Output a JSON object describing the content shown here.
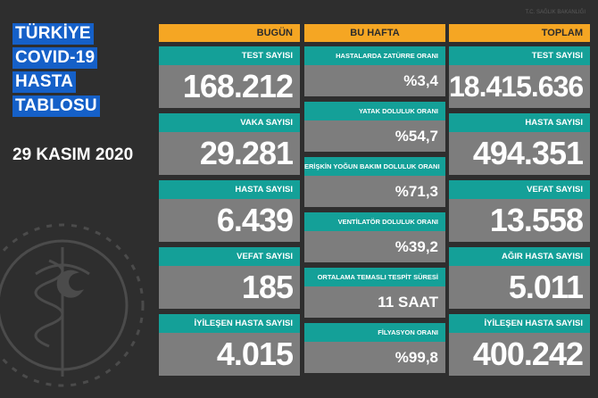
{
  "title": {
    "lines": [
      "TÜRKİYE",
      "COVID-19",
      "HASTA",
      "TABLOSU"
    ]
  },
  "date": "29 KASIM 2020",
  "watermark": "T.C. SAĞLIK BAKANLIĞI",
  "columns": {
    "today": {
      "header": "BUGÜN",
      "cards": [
        {
          "label": "TEST SAYISI",
          "value": "168.212"
        },
        {
          "label": "VAKA SAYISI",
          "value": "29.281"
        },
        {
          "label": "HASTA SAYISI",
          "value": "6.439"
        },
        {
          "label": "VEFAT SAYISI",
          "value": "185"
        },
        {
          "label": "İYİLEŞEN HASTA SAYISI",
          "value": "4.015"
        }
      ]
    },
    "week": {
      "header": "BU HAFTA",
      "cards": [
        {
          "label": "HASTALARDA ZATÜRRE ORANI",
          "value": "%3,4"
        },
        {
          "label": "YATAK DOLULUK ORANI",
          "value": "%54,7"
        },
        {
          "label": "ERİŞKİN YOĞUN BAKIM DOLULUK ORANI",
          "value": "%71,3"
        },
        {
          "label": "VENTİLATÖR DOLULUK ORANI",
          "value": "%39,2"
        },
        {
          "label": "ORTALAMA TEMASLI TESPİT SÜRESİ",
          "value": "11 SAAT"
        },
        {
          "label": "FİLYASYON ORANI",
          "value": "%99,8"
        }
      ]
    },
    "total": {
      "header": "TOPLAM",
      "cards": [
        {
          "label": "TEST SAYISI",
          "value": "18.415.636"
        },
        {
          "label": "HASTA SAYISI",
          "value": "494.351"
        },
        {
          "label": "VEFAT SAYISI",
          "value": "13.558"
        },
        {
          "label": "AĞIR HASTA SAYISI",
          "value": "5.011"
        },
        {
          "label": "İYİLEŞEN HASTA SAYISI",
          "value": "400.242"
        }
      ]
    }
  },
  "colors": {
    "background": "#2e2e2e",
    "header": "#f5a623",
    "label": "#14a098",
    "card": "#7d7d7d",
    "title_highlight": "#1560c8"
  }
}
